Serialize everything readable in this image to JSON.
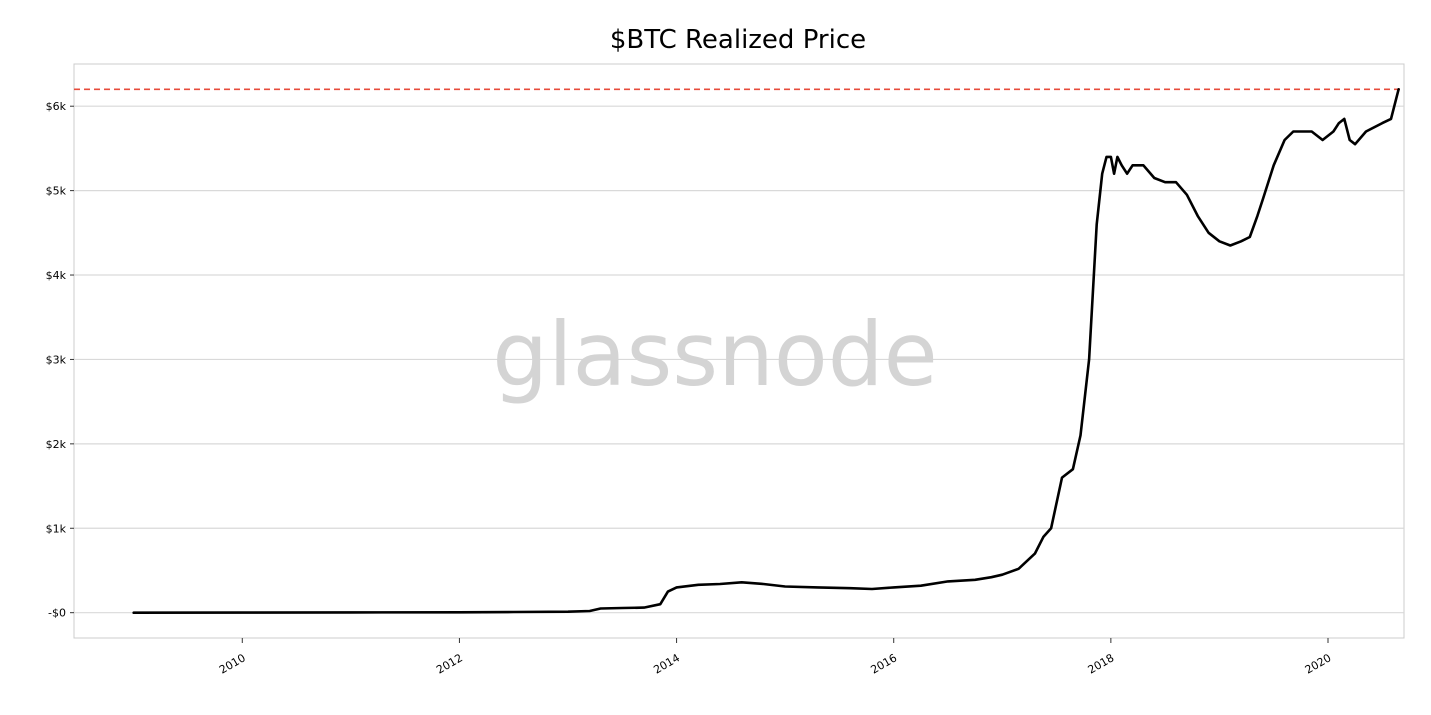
{
  "chart_data": {
    "type": "line",
    "title": "$BTC Realized Price",
    "watermark": "glassnode",
    "xlabel": "",
    "ylabel": "",
    "xlim": [
      2008.45,
      2020.7
    ],
    "ylim": [
      -300,
      6500
    ],
    "y_ticks": [
      {
        "value": 0,
        "label": "-$0"
      },
      {
        "value": 1000,
        "label": "$1k"
      },
      {
        "value": 2000,
        "label": "$2k"
      },
      {
        "value": 3000,
        "label": "$3k"
      },
      {
        "value": 4000,
        "label": "$4k"
      },
      {
        "value": 5000,
        "label": "$5k"
      },
      {
        "value": 6000,
        "label": "$6k"
      }
    ],
    "x_ticks": [
      {
        "value": 2010,
        "label": "2010"
      },
      {
        "value": 2012,
        "label": "2012"
      },
      {
        "value": 2014,
        "label": "2014"
      },
      {
        "value": 2016,
        "label": "2016"
      },
      {
        "value": 2018,
        "label": "2018"
      },
      {
        "value": 2020,
        "label": "2020"
      }
    ],
    "grid": "horizontal",
    "reference_line": {
      "value": 6200,
      "style": "dashed",
      "color": "#e74c3c"
    },
    "line_color": "#000000",
    "series": [
      {
        "x": [
          2009.0,
          2010.0,
          2011.0,
          2012.0,
          2012.5,
          2013.0,
          2013.2,
          2013.3,
          2013.5,
          2013.7,
          2013.85,
          2013.92,
          2014.0,
          2014.2,
          2014.4,
          2014.6,
          2014.8,
          2015.0,
          2015.3,
          2015.6,
          2015.8,
          2016.0,
          2016.25,
          2016.5,
          2016.75,
          2016.9,
          2017.0,
          2017.15,
          2017.3,
          2017.38,
          2017.45,
          2017.55,
          2017.65,
          2017.72,
          2017.8,
          2017.87,
          2017.92,
          2017.96,
          2018.0,
          2018.03,
          2018.06,
          2018.1,
          2018.15,
          2018.2,
          2018.3,
          2018.4,
          2018.5,
          2018.6,
          2018.7,
          2018.8,
          2018.9,
          2019.0,
          2019.1,
          2019.2,
          2019.28,
          2019.35,
          2019.4,
          2019.5,
          2019.6,
          2019.68,
          2019.75,
          2019.85,
          2019.95,
          2020.05,
          2020.1,
          2020.15,
          2020.2,
          2020.25,
          2020.35,
          2020.5,
          2020.58,
          2020.65
        ],
        "y": [
          0,
          1,
          3,
          5,
          8,
          12,
          20,
          50,
          55,
          60,
          100,
          250,
          300,
          330,
          340,
          360,
          340,
          310,
          300,
          290,
          280,
          300,
          320,
          370,
          390,
          420,
          450,
          520,
          700,
          900,
          1000,
          1600,
          1700,
          2100,
          3000,
          4600,
          5200,
          5400,
          5400,
          5200,
          5400,
          5300,
          5200,
          5300,
          5300,
          5150,
          5100,
          5100,
          4950,
          4700,
          4500,
          4400,
          4350,
          4400,
          4450,
          4700,
          4900,
          5300,
          5600,
          5700,
          5700,
          5700,
          5600,
          5700,
          5800,
          5850,
          5600,
          5550,
          5700,
          5800,
          5850,
          6200
        ]
      }
    ]
  }
}
